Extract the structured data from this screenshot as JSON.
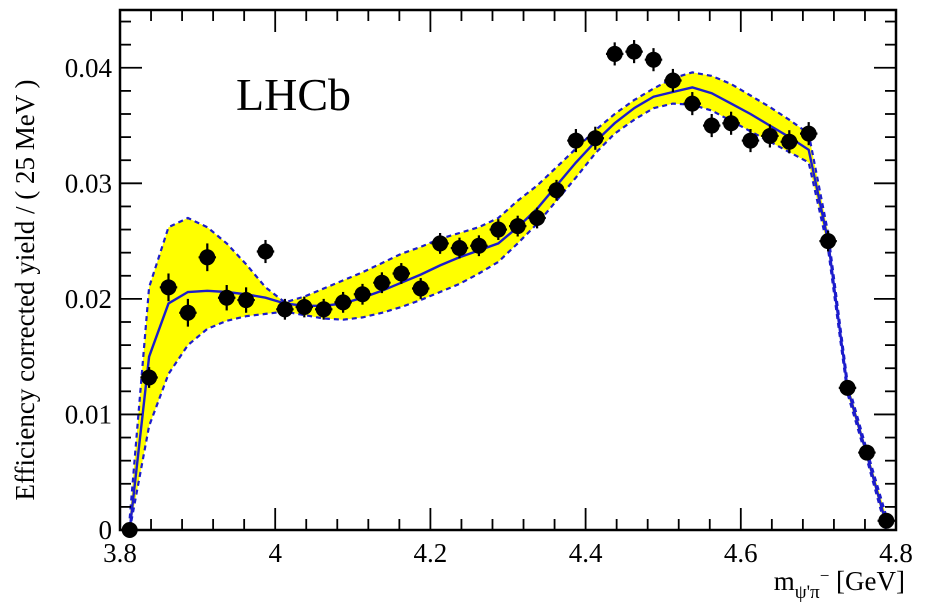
{
  "chart_data": {
    "type": "scatter",
    "title": "",
    "annotation": "LHCb",
    "xlabel": {
      "main": "m",
      "sub": "ψ'π",
      "sup": "−",
      "unit": " [GeV]"
    },
    "ylabel": "Efficiency corrected yield / ( 25 MeV )",
    "xlim": [
      3.8,
      4.8
    ],
    "ylim": [
      0,
      0.045
    ],
    "x_ticks": [
      3.8,
      4.0,
      4.2,
      4.4,
      4.6,
      4.8
    ],
    "x_tick_labels": [
      "3.8",
      "4",
      "4.2",
      "4.4",
      "4.6",
      "4.8"
    ],
    "y_ticks": [
      0,
      0.01,
      0.02,
      0.03,
      0.04
    ],
    "y_tick_labels": [
      "0",
      "0.01",
      "0.02",
      "0.03",
      "0.04"
    ],
    "grid": false,
    "colors": {
      "points": "#000000",
      "fit": "#1c1ccc",
      "band": "#ffff00",
      "band_edge": "#1c1ccc"
    },
    "points": {
      "x": [
        3.8125,
        3.8375,
        3.8625,
        3.8875,
        3.9125,
        3.9375,
        3.9625,
        3.9875,
        4.0125,
        4.0375,
        4.0625,
        4.0875,
        4.1125,
        4.1375,
        4.1625,
        4.1875,
        4.2125,
        4.2375,
        4.2625,
        4.2875,
        4.3125,
        4.3375,
        4.3625,
        4.3875,
        4.4125,
        4.4375,
        4.4625,
        4.4875,
        4.5125,
        4.5375,
        4.5625,
        4.5875,
        4.6125,
        4.6375,
        4.6625,
        4.6875,
        4.7125,
        4.7375,
        4.7625,
        4.7875
      ],
      "y": [
        0.0,
        0.0132,
        0.021,
        0.0188,
        0.0236,
        0.0201,
        0.0199,
        0.0241,
        0.0191,
        0.0193,
        0.0191,
        0.0197,
        0.0204,
        0.0214,
        0.0222,
        0.0209,
        0.0248,
        0.0244,
        0.0246,
        0.026,
        0.0263,
        0.027,
        0.0294,
        0.0337,
        0.0339,
        0.0412,
        0.0414,
        0.0407,
        0.0389,
        0.0369,
        0.035,
        0.0352,
        0.0337,
        0.0341,
        0.0336,
        0.0343,
        0.025,
        0.0123,
        0.0067,
        0.0008
      ],
      "yerr": [
        0.0004,
        0.0009,
        0.0012,
        0.0012,
        0.0012,
        0.0011,
        0.0011,
        0.001,
        0.0009,
        0.0009,
        0.0009,
        0.0009,
        0.0009,
        0.0009,
        0.0009,
        0.0009,
        0.0009,
        0.0009,
        0.0009,
        0.0009,
        0.0009,
        0.0009,
        0.0009,
        0.001,
        0.001,
        0.001,
        0.001,
        0.001,
        0.001,
        0.001,
        0.001,
        0.001,
        0.001,
        0.001,
        0.001,
        0.001,
        0.0009,
        0.0006,
        0.0005,
        0.0003
      ]
    },
    "fit_line": {
      "x": [
        3.8125,
        3.8375,
        3.8625,
        3.8875,
        3.9125,
        3.9375,
        3.9625,
        3.9875,
        4.0125,
        4.0375,
        4.0625,
        4.0875,
        4.1125,
        4.1375,
        4.1625,
        4.1875,
        4.2125,
        4.2375,
        4.2625,
        4.2875,
        4.3125,
        4.3375,
        4.3625,
        4.3875,
        4.4125,
        4.4375,
        4.4625,
        4.4875,
        4.5125,
        4.5375,
        4.5625,
        4.5875,
        4.6125,
        4.6375,
        4.6625,
        4.6875,
        4.7125,
        4.7375,
        4.7625,
        4.7875
      ],
      "y": [
        0.0,
        0.015,
        0.0196,
        0.0206,
        0.0207,
        0.0206,
        0.0204,
        0.0201,
        0.0196,
        0.0194,
        0.0194,
        0.0196,
        0.0201,
        0.0207,
        0.0214,
        0.0221,
        0.0229,
        0.0236,
        0.0242,
        0.0248,
        0.0262,
        0.0278,
        0.0298,
        0.0318,
        0.0336,
        0.0352,
        0.0365,
        0.0375,
        0.0379,
        0.0383,
        0.0378,
        0.0369,
        0.036,
        0.035,
        0.034,
        0.0329,
        0.025,
        0.0123,
        0.0065,
        0.0005
      ]
    },
    "band_upper": {
      "x": [
        3.8125,
        3.8375,
        3.8625,
        3.8875,
        3.9125,
        3.9375,
        3.9625,
        3.9875,
        4.0125,
        4.0375,
        4.0625,
        4.0875,
        4.1125,
        4.1375,
        4.1625,
        4.1875,
        4.2125,
        4.2375,
        4.2625,
        4.2875,
        4.3125,
        4.3375,
        4.3625,
        4.3875,
        4.4125,
        4.4375,
        4.4625,
        4.4875,
        4.5125,
        4.5375,
        4.5625,
        4.5875,
        4.6125,
        4.6375,
        4.6625,
        4.6875,
        4.7125,
        4.7375,
        4.7625,
        4.7875
      ],
      "y": [
        0.001,
        0.021,
        0.0262,
        0.027,
        0.0262,
        0.0248,
        0.023,
        0.021,
        0.0197,
        0.0202,
        0.0209,
        0.0216,
        0.0223,
        0.0231,
        0.0239,
        0.0245,
        0.0252,
        0.0257,
        0.0262,
        0.027,
        0.0285,
        0.0298,
        0.0314,
        0.033,
        0.0346,
        0.036,
        0.0372,
        0.0382,
        0.0391,
        0.0396,
        0.0393,
        0.0386,
        0.0376,
        0.0366,
        0.0355,
        0.0343,
        0.0257,
        0.0128,
        0.0069,
        0.0012
      ]
    },
    "band_lower": {
      "x": [
        3.8125,
        3.8375,
        3.8625,
        3.8875,
        3.9125,
        3.9375,
        3.9625,
        3.9875,
        4.0125,
        4.0375,
        4.0625,
        4.0875,
        4.1125,
        4.1375,
        4.1625,
        4.1875,
        4.2125,
        4.2375,
        4.2625,
        4.2875,
        4.3125,
        4.3375,
        4.3625,
        4.3875,
        4.4125,
        4.4375,
        4.4625,
        4.4875,
        4.5125,
        4.5375,
        4.5625,
        4.5875,
        4.6125,
        4.6375,
        4.6625,
        4.6875,
        4.7125,
        4.7375,
        4.7625,
        4.7875
      ],
      "y": [
        0.0,
        0.009,
        0.0135,
        0.016,
        0.0174,
        0.0181,
        0.0185,
        0.0187,
        0.0189,
        0.0186,
        0.0183,
        0.0182,
        0.0184,
        0.0188,
        0.0193,
        0.0199,
        0.0206,
        0.0213,
        0.0222,
        0.0232,
        0.0248,
        0.0265,
        0.0285,
        0.0305,
        0.0326,
        0.0343,
        0.0355,
        0.0365,
        0.0369,
        0.0368,
        0.0363,
        0.0354,
        0.0345,
        0.0336,
        0.0327,
        0.0318,
        0.0243,
        0.0118,
        0.0061,
        0.0
      ]
    }
  }
}
